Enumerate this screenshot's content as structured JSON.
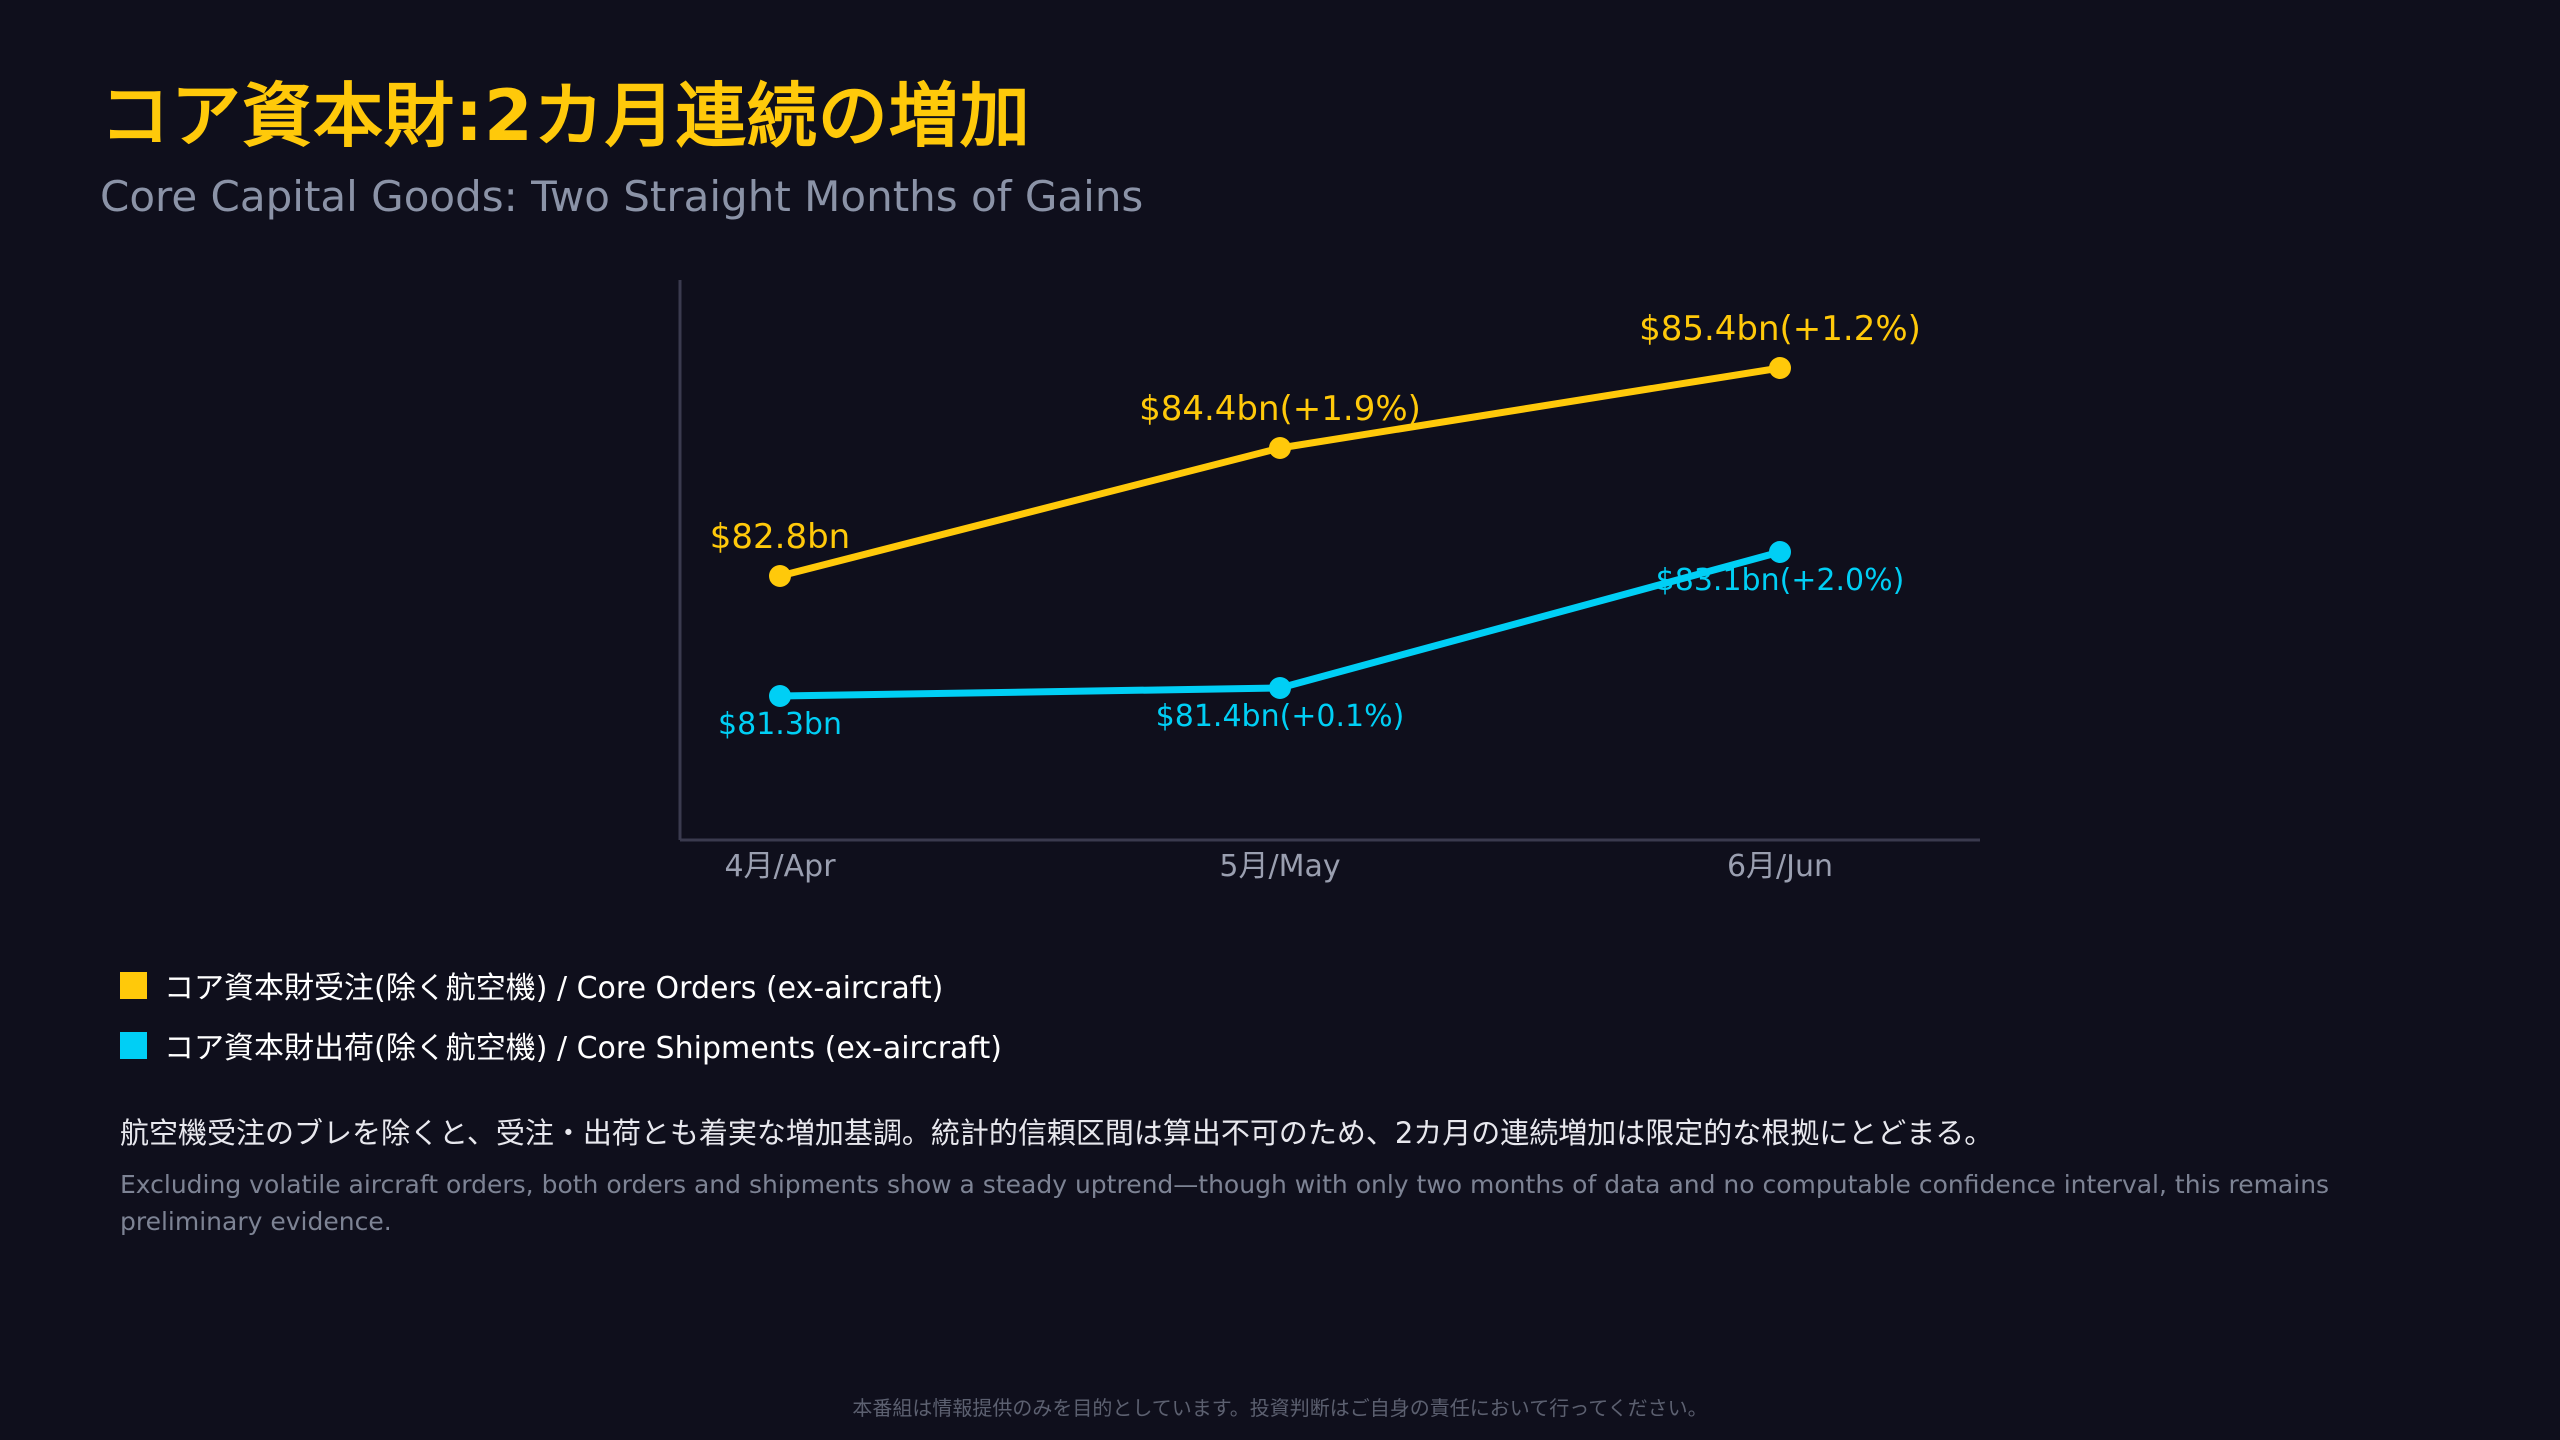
{
  "header": {
    "title": "コア資本財:2カ月連続の増加",
    "subtitle": "Core Capital Goods: Two Straight Months of Gains"
  },
  "chart_data": {
    "type": "line",
    "categories": [
      "4月/Apr",
      "5月/May",
      "6月/Jun"
    ],
    "series": [
      {
        "name": "コア資本財受注(除く航空機) / Core Orders (ex-aircraft)",
        "color": "#ffc90a",
        "values": [
          82.8,
          84.4,
          85.4
        ],
        "labels": [
          "$82.8bn",
          "$84.4bn(+1.9%)",
          "$85.4bn(+1.2%)"
        ]
      },
      {
        "name": "コア資本財出荷(除く航空機) / Core Shipments (ex-aircraft)",
        "color": "#00cff5",
        "values": [
          81.3,
          81.4,
          83.1
        ],
        "labels": [
          "$81.3bn",
          "$81.4bn(+0.1%)",
          "$83.1bn(+2.0%)"
        ]
      }
    ],
    "ylim": [
      79.5,
      86.5
    ],
    "xlabel": "",
    "ylabel": "",
    "grid": false,
    "legend": "bottom-left"
  },
  "notes": {
    "ja": "航空機受注のブレを除くと、受注・出荷とも着実な増加基調。統計的信頼区間は算出不可のため、2カ月の連続増加は限定的な根拠にとどまる。",
    "en": "Excluding volatile aircraft orders, both orders and shipments show a steady uptrend—though with only two months of data and no computable confidence interval, this remains preliminary evidence."
  },
  "footer": {
    "disclaimer": "本番組は情報提供のみを目的としています。投資判断はご自身の責任において行ってください。"
  }
}
